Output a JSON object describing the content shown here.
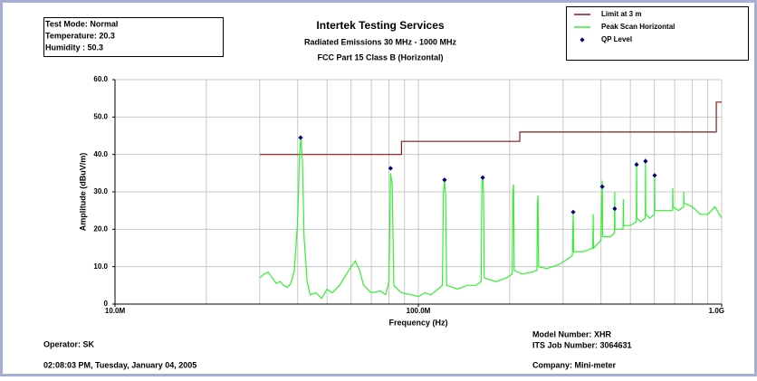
{
  "chart_data": {
    "type": "line",
    "title": "Intertek Testing Services",
    "subtitles": [
      "Radiated Emissions 30 MHz - 1000 MHz",
      "FCC Part 15 Class B (Horizontal)"
    ],
    "info": [
      "Test Mode: Normal",
      "Temperature: 20.3",
      "Humidity : 50.3"
    ],
    "footer_left": [
      "Operator: SK",
      "02:08:03 PM, Tuesday, January 04, 2005"
    ],
    "footer_right": [
      "Model Number: XHR",
      "ITS Job Number: 3064631",
      "Company: Mini-meter"
    ],
    "x_label": "Frequency (Hz)",
    "y_label": "Amplitude (dBuV/m)",
    "xscale": "log",
    "xlim": [
      10000000,
      1000000000
    ],
    "xticks": [
      {
        "value": 10000000,
        "label": "10.0M"
      },
      {
        "value": 100000000,
        "label": "100.0M"
      },
      {
        "value": 1000000000,
        "label": "1.0G"
      }
    ],
    "ylim": [
      0,
      60
    ],
    "yticks": [
      0,
      {
        "value": 10,
        "label": "10.0"
      },
      {
        "value": 20,
        "label": "20.0"
      },
      {
        "value": 30,
        "label": "30.0"
      },
      {
        "value": 40,
        "label": "40.0"
      },
      {
        "value": 50,
        "label": "50.0"
      },
      {
        "value": 60,
        "label": "60.0"
      }
    ],
    "grid": true,
    "legend": "top-right",
    "series": [
      {
        "name": "Limit at 3 m",
        "type": "line",
        "color": "#8b1a1a",
        "x": [
          30000000,
          88000000,
          88000000,
          216000000,
          216000000,
          960000000,
          960000000,
          1000000000
        ],
        "values": [
          40,
          40,
          43.5,
          43.5,
          46,
          46,
          54,
          54
        ]
      },
      {
        "name": "Peak Scan Horizontal",
        "type": "line",
        "color": "#33f033",
        "x": [
          30000000,
          31000000,
          32000000,
          33000000,
          34000000,
          35000000,
          36000000,
          37000000,
          38000000,
          39000000,
          40000000,
          40500000,
          41000000,
          41500000,
          42000000,
          43000000,
          44000000,
          46000000,
          48000000,
          50000000,
          52000000,
          55000000,
          58000000,
          60000000,
          62000000,
          64000000,
          66000000,
          70000000,
          75000000,
          78000000,
          80000000,
          81000000,
          82000000,
          83000000,
          88000000,
          95000000,
          100000000,
          105000000,
          110000000,
          116000000,
          120000000,
          121000000,
          122000000,
          123000000,
          124000000,
          135000000,
          145000000,
          155000000,
          161000000,
          162000000,
          163000000,
          164000000,
          165000000,
          180000000,
          195000000,
          204000000,
          205000000,
          206000000,
          207000000,
          220000000,
          235000000,
          246000000,
          247000000,
          248000000,
          249000000,
          265000000,
          290000000,
          310000000,
          322000000,
          323000000,
          324000000,
          325000000,
          350000000,
          376000000,
          377000000,
          378000000,
          400000000,
          403000000,
          404000000,
          405000000,
          430000000,
          443000000,
          444000000,
          445000000,
          473000000,
          474000000,
          475000000,
          500000000,
          523000000,
          524000000,
          525000000,
          540000000,
          560000000,
          561000000,
          562000000,
          580000000,
          600000000,
          601000000,
          602000000,
          640000000,
          689000000,
          690000000,
          691000000,
          720000000,
          749000000,
          750000000,
          751000000,
          800000000,
          850000000,
          900000000,
          950000000,
          1000000000
        ],
        "values": [
          7,
          8,
          8.5,
          7,
          5.5,
          6,
          5,
          4.5,
          5.5,
          9,
          22,
          38,
          45,
          38,
          18,
          6,
          2.5,
          3,
          1.5,
          4,
          3,
          5,
          8,
          10,
          11.5,
          9,
          5,
          3,
          3.5,
          2.5,
          6,
          35,
          32,
          5,
          3,
          2.5,
          2,
          3,
          2.5,
          4,
          5,
          30,
          33,
          29,
          5,
          4,
          5,
          5,
          6,
          32,
          34,
          30,
          7,
          6,
          7,
          8,
          30,
          32,
          9,
          8,
          8.5,
          9,
          27,
          29,
          10,
          9.5,
          10.5,
          12,
          13,
          20,
          24,
          14,
          14,
          15,
          24,
          15,
          17,
          30,
          33,
          18,
          18,
          19,
          30,
          20,
          20,
          28,
          21,
          21,
          22,
          38,
          23,
          22,
          23,
          39,
          24,
          23,
          24,
          35,
          25,
          25,
          25,
          31,
          26,
          25,
          26,
          30,
          27,
          26,
          24,
          24,
          26,
          23
        ]
      },
      {
        "name": "QP Level",
        "type": "scatter",
        "color": "#000080",
        "x": [
          40900000,
          81000000,
          122000000,
          163000000,
          324000000,
          404000000,
          444000000,
          524000000,
          561000000,
          601000000
        ],
        "values": [
          44.5,
          36.3,
          33.2,
          33.8,
          24.6,
          31.4,
          25.5,
          37.3,
          38.2,
          34.4
        ]
      }
    ]
  }
}
